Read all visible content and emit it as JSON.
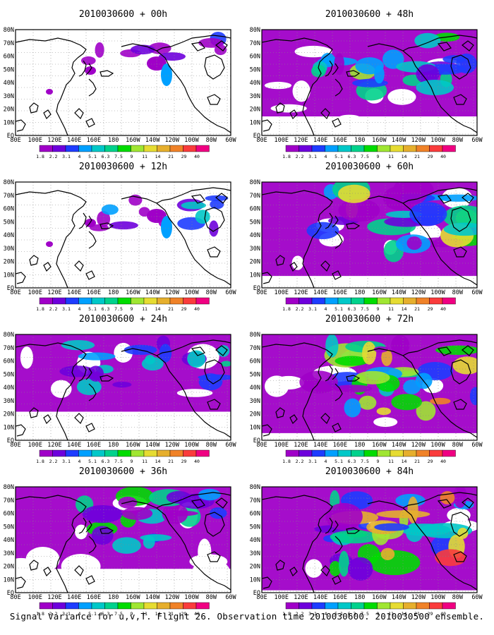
{
  "lat_labels": [
    "80N",
    "70N",
    "60N",
    "50N",
    "40N",
    "30N",
    "20N",
    "10N",
    "EQ"
  ],
  "lon_labels": [
    "80E",
    "100E",
    "120E",
    "140E",
    "160E",
    "180",
    "160W",
    "140W",
    "120W",
    "100W",
    "80W",
    "60W"
  ],
  "colorbar": {
    "labels": [
      "1.8",
      "2.2",
      "3.1",
      "4",
      "5.1",
      "6.3",
      "7.5",
      "9",
      "11",
      "14",
      "21",
      "29",
      "40"
    ],
    "colors": [
      "#a000c8",
      "#6e00dc",
      "#1e3cff",
      "#00a0ff",
      "#00c8c8",
      "#00d28c",
      "#00dc00",
      "#a0e632",
      "#e6dc32",
      "#e6af2d",
      "#f08228",
      "#fa3c3c",
      "#f00082"
    ]
  },
  "panels": [
    {
      "title": "2010030600 + 00h",
      "forecast_hour": "00h",
      "intensity": 0.1
    },
    {
      "title": "2010030600 + 48h",
      "forecast_hour": "48h",
      "intensity": 0.6
    },
    {
      "title": "2010030600 + 12h",
      "forecast_hour": "12h",
      "intensity": 0.25
    },
    {
      "title": "2010030600 + 60h",
      "forecast_hour": "60h",
      "intensity": 0.75
    },
    {
      "title": "2010030600 + 24h",
      "forecast_hour": "24h",
      "intensity": 0.4
    },
    {
      "title": "2010030600 + 72h",
      "forecast_hour": "72h",
      "intensity": 0.85
    },
    {
      "title": "2010030600 + 36h",
      "forecast_hour": "36h",
      "intensity": 0.5
    },
    {
      "title": "2010030600 + 84h",
      "forecast_hour": "84h",
      "intensity": 0.95
    }
  ],
  "footer": "Signal Variance for u,v,T. Flight 26. Observation time 2010030600. 2010030500 ensemble."
}
